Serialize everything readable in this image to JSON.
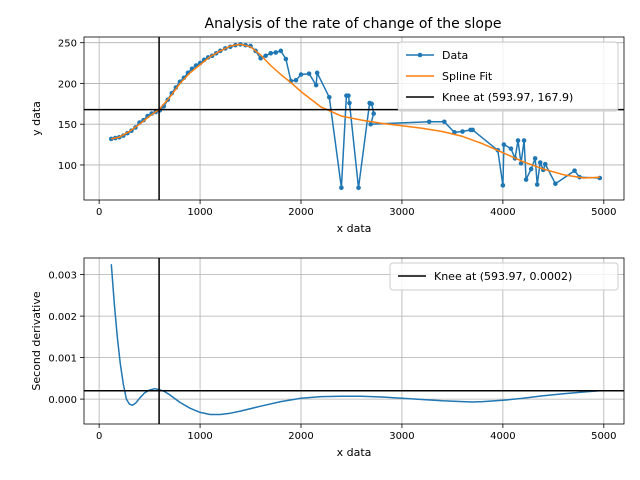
{
  "chart_data": [
    {
      "type": "line",
      "title": "Analysis of the rate of change of the slope",
      "xlabel": "x data",
      "ylabel": "y data",
      "xlim": [
        -150,
        5200
      ],
      "ylim": [
        57,
        257
      ],
      "xticks": [
        0,
        1000,
        2000,
        3000,
        4000,
        5000
      ],
      "yticks": [
        100,
        150,
        200,
        250
      ],
      "grid": true,
      "legend_position": "top-right",
      "colors": {
        "data": "#1f77b4",
        "fit": "#ff7f0e",
        "knee": "#000000"
      },
      "series": [
        {
          "name": "Data",
          "x": [
            120,
            160,
            200,
            240,
            280,
            320,
            360,
            400,
            440,
            480,
            520,
            560,
            600,
            640,
            680,
            720,
            760,
            800,
            840,
            880,
            920,
            960,
            1000,
            1040,
            1080,
            1120,
            1160,
            1200,
            1250,
            1300,
            1350,
            1400,
            1450,
            1500,
            1550,
            1600,
            1650,
            1700,
            1750,
            1800,
            1850,
            1900,
            1950,
            2000,
            2080,
            2150,
            2160,
            2280,
            2400,
            2450,
            2470,
            2480,
            2570,
            2680,
            2700,
            2720,
            2690,
            3270,
            3420,
            3520,
            3600,
            3680,
            3700,
            3950,
            4000,
            4010,
            4080,
            4120,
            4150,
            4180,
            4210,
            4230,
            4280,
            4320,
            4340,
            4370,
            4400,
            4420,
            4520,
            4710,
            4760,
            4960
          ],
          "y": [
            132,
            133,
            134,
            136,
            139,
            142,
            146,
            152,
            155,
            160,
            163,
            165,
            167,
            172,
            180,
            188,
            195,
            202,
            207,
            213,
            218,
            222,
            225,
            229,
            232,
            234,
            237,
            240,
            243,
            245,
            247,
            248,
            247,
            246,
            240,
            231,
            234,
            237,
            238,
            240,
            230,
            203,
            204,
            211,
            212,
            198,
            213,
            183,
            72,
            185,
            185,
            176,
            72,
            176,
            175,
            163,
            150,
            153,
            153,
            140,
            141,
            143,
            143,
            118,
            75,
            125,
            120,
            108,
            130,
            102,
            130,
            82,
            95,
            108,
            76,
            103,
            94,
            101,
            77,
            93,
            85,
            84
          ],
          "markers": true
        },
        {
          "name": "Spline Fit",
          "x": [
            120,
            200,
            300,
            400,
            500,
            594,
            700,
            800,
            900,
            1000,
            1100,
            1200,
            1300,
            1400,
            1500,
            1600,
            1700,
            1800,
            1900,
            2000,
            2200,
            2400,
            2600,
            2800,
            3000,
            3200,
            3400,
            3600,
            3800,
            4000,
            4200,
            4400,
            4600,
            4800,
            4960
          ],
          "y": [
            132,
            134,
            141,
            150,
            160,
            168,
            183,
            200,
            213,
            223,
            233,
            240,
            246,
            248,
            245,
            235,
            222,
            211,
            201,
            190,
            171,
            160,
            155,
            151,
            148,
            145,
            141,
            135,
            126,
            115,
            104,
            95,
            88,
            84,
            85
          ]
        }
      ],
      "knee": {
        "label": "Knee at (593.97, 167.9)",
        "x": 593.97,
        "y": 167.9
      }
    },
    {
      "type": "line",
      "title": "",
      "xlabel": "x data",
      "ylabel": "Second derivative",
      "xlim": [
        -150,
        5200
      ],
      "ylim": [
        -0.0006,
        0.0034
      ],
      "xticks": [
        0,
        1000,
        2000,
        3000,
        4000,
        5000
      ],
      "yticks": [
        0.0,
        0.001,
        0.002,
        0.003
      ],
      "ytick_labels": [
        "0.000",
        "0.001",
        "0.002",
        "0.003"
      ],
      "grid": true,
      "legend_position": "top-right",
      "colors": {
        "curve": "#1f77b4",
        "knee": "#000000"
      },
      "series": [
        {
          "name": "",
          "x": [
            120,
            150,
            180,
            210,
            240,
            270,
            300,
            330,
            360,
            400,
            450,
            500,
            550,
            594,
            650,
            700,
            800,
            900,
            1000,
            1100,
            1200,
            1300,
            1400,
            1600,
            1800,
            2000,
            2200,
            2400,
            2600,
            2800,
            3000,
            3200,
            3400,
            3600,
            3700,
            3800,
            4000,
            4200,
            4400,
            4600,
            4800,
            4960
          ],
          "y": [
            0.00325,
            0.0023,
            0.0015,
            0.00085,
            0.00035,
            0.0,
            -0.00012,
            -0.00015,
            -0.0001,
            2e-05,
            0.00015,
            0.00022,
            0.00025,
            0.00023,
            0.00018,
            0.0001,
            -8e-05,
            -0.00022,
            -0.00032,
            -0.00037,
            -0.00037,
            -0.00034,
            -0.00029,
            -0.00017,
            -6e-05,
            2e-05,
            6e-05,
            7e-05,
            7e-05,
            5e-05,
            2e-05,
            -1e-05,
            -4e-05,
            -6e-05,
            -7e-05,
            -6e-05,
            -3e-05,
            2e-05,
            8e-05,
            0.00013,
            0.00017,
            0.0002
          ]
        }
      ],
      "knee": {
        "label": "Knee at (593.97, 0.0002)",
        "x": 593.97,
        "y": 0.0002
      }
    }
  ]
}
